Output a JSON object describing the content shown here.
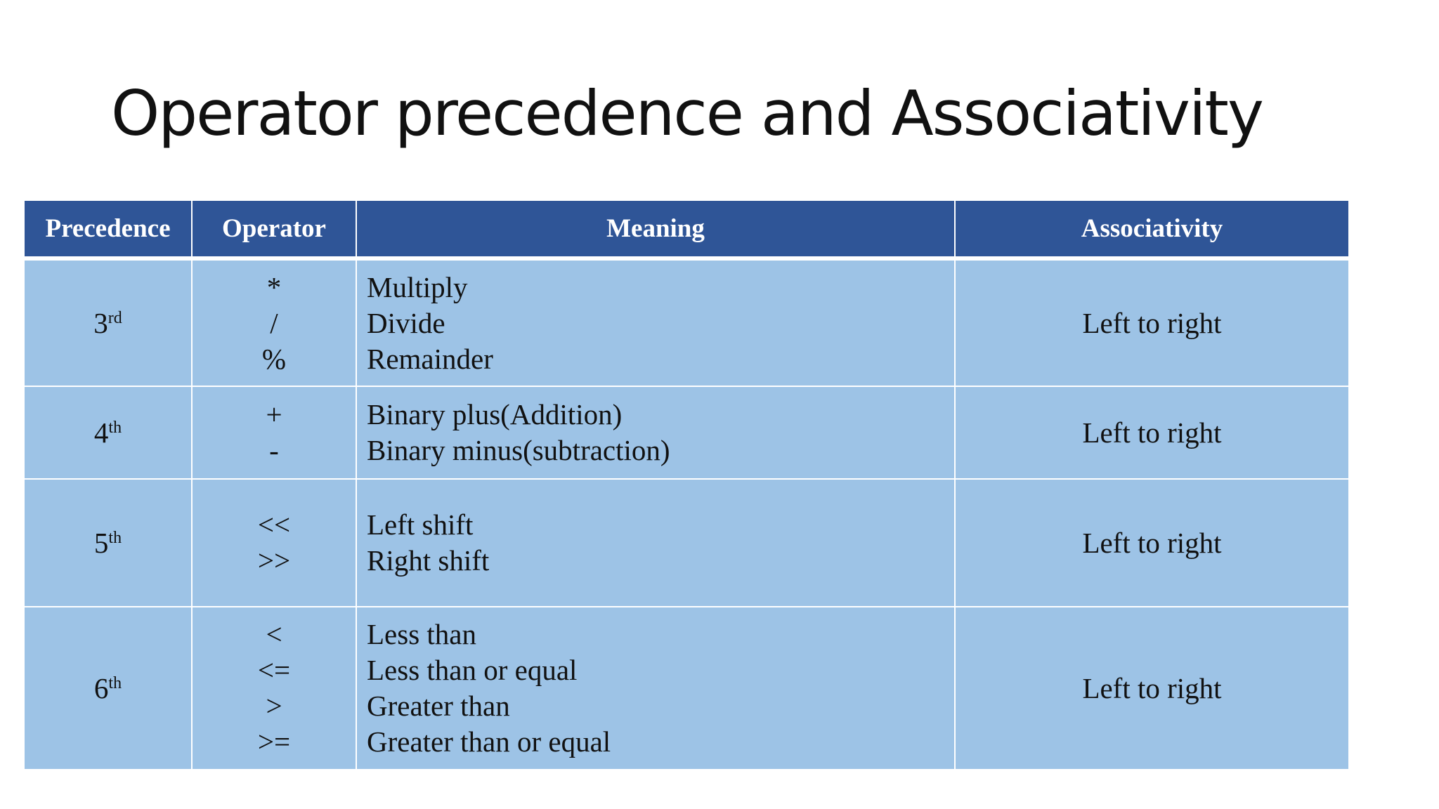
{
  "title": "Operator precedence and Associativity",
  "colors": {
    "header_bg": "#2f5597",
    "row_bg": "#9dc3e6",
    "header_text": "#ffffff"
  },
  "table": {
    "headers": [
      "Precedence",
      "Operator",
      "Meaning",
      "Associativity"
    ],
    "rows": [
      {
        "precedence": "3",
        "precedence_suffix": "rd",
        "operators": [
          "*",
          "/",
          "%"
        ],
        "meanings": [
          "Multiply",
          "Divide",
          "Remainder"
        ],
        "associativity": "Left to right"
      },
      {
        "precedence": "4",
        "precedence_suffix": "th",
        "operators": [
          "+",
          "-"
        ],
        "meanings": [
          "Binary plus(Addition)",
          "Binary minus(subtraction)"
        ],
        "associativity": "Left to right"
      },
      {
        "precedence": "5",
        "precedence_suffix": "th",
        "operators": [
          "<<",
          ">>"
        ],
        "meanings": [
          "Left shift",
          "Right shift"
        ],
        "associativity": "Left to right"
      },
      {
        "precedence": "6",
        "precedence_suffix": "th",
        "operators": [
          "<",
          "<=",
          ">",
          ">="
        ],
        "meanings": [
          "Less than",
          "Less than or equal",
          "Greater than",
          "Greater than or equal"
        ],
        "associativity": "Left to right"
      }
    ]
  }
}
